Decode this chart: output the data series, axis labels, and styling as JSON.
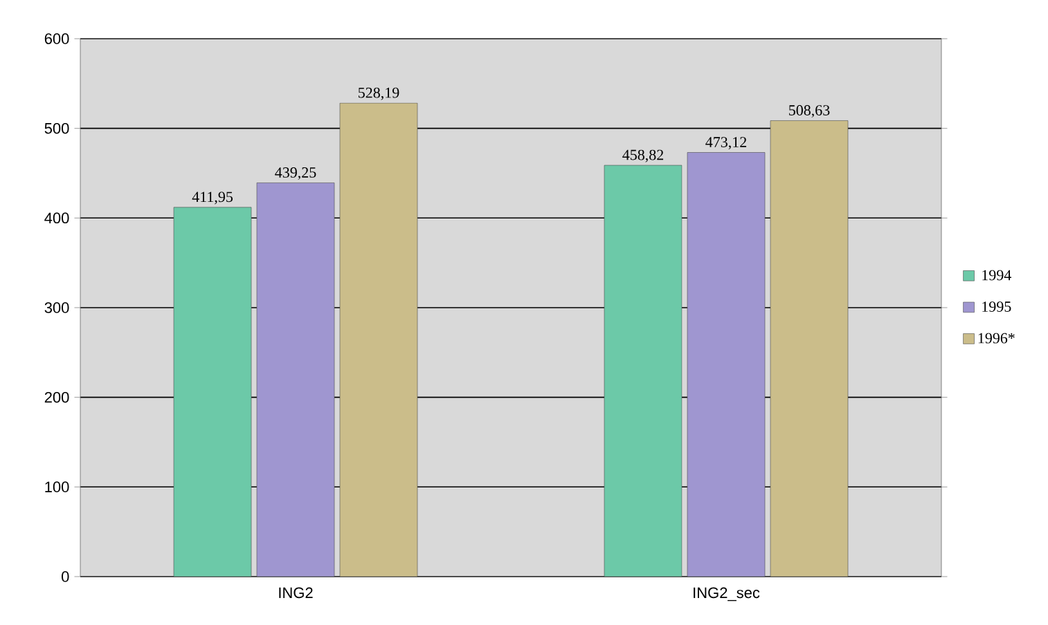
{
  "chart_data": {
    "type": "bar",
    "categories": [
      "ING2",
      "ING2_sec"
    ],
    "series": [
      {
        "name": "1994",
        "color": "#6cc9a8",
        "values": [
          411.95,
          458.82
        ],
        "value_labels": [
          "411,95",
          "458,82"
        ]
      },
      {
        "name": "1995",
        "color": "#9f96d0",
        "values": [
          439.25,
          473.12
        ],
        "value_labels": [
          "439,25",
          "473,12"
        ]
      },
      {
        "name": "1996*",
        "color": "#cbbd8a",
        "values": [
          528.19,
          508.63
        ],
        "value_labels": [
          "528,19",
          "508,63"
        ]
      }
    ],
    "ylim": [
      0,
      600
    ],
    "yticks": [
      0,
      100,
      200,
      300,
      400,
      500,
      600
    ],
    "grid": "y",
    "legend": "right"
  }
}
